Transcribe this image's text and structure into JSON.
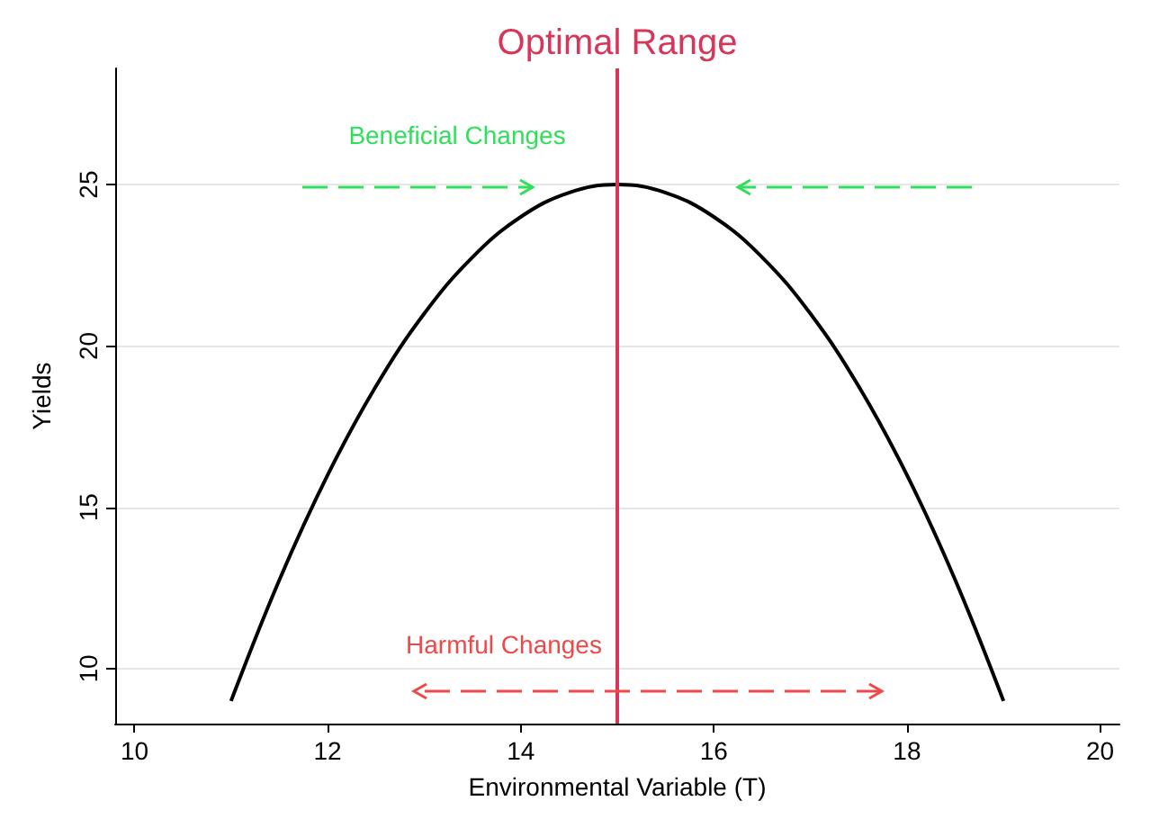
{
  "chart_data": {
    "type": "line",
    "xlabel": "Environmental Variable (T)",
    "ylabel": "Yields",
    "x": [
      11,
      11.5,
      12,
      12.5,
      13,
      13.5,
      14,
      14.5,
      15,
      15.5,
      16,
      16.5,
      17,
      17.5,
      18,
      18.5,
      19
    ],
    "series": [
      {
        "color": "#000000",
        "values": [
          9,
          12.75,
          16,
          18.75,
          21,
          22.75,
          24,
          24.75,
          25,
          24.75,
          24,
          22.75,
          21,
          18.75,
          16,
          12.75,
          9
        ]
      }
    ],
    "xlim": [
      9.8,
      20.2
    ],
    "xticks": [
      10,
      12,
      14,
      16,
      18,
      20
    ],
    "ylim": [
      8.3,
      28.6
    ],
    "yticks": [
      10,
      15,
      20,
      25
    ],
    "grid": "y",
    "marker": "none",
    "line_style": "solid",
    "ref_lines": [
      {
        "axis": "x",
        "value": 15,
        "label": "Optimal Range",
        "color": "#d6365a"
      }
    ],
    "annotations": [
      "Beneficial Changes",
      "Harmful Changes"
    ]
  }
}
